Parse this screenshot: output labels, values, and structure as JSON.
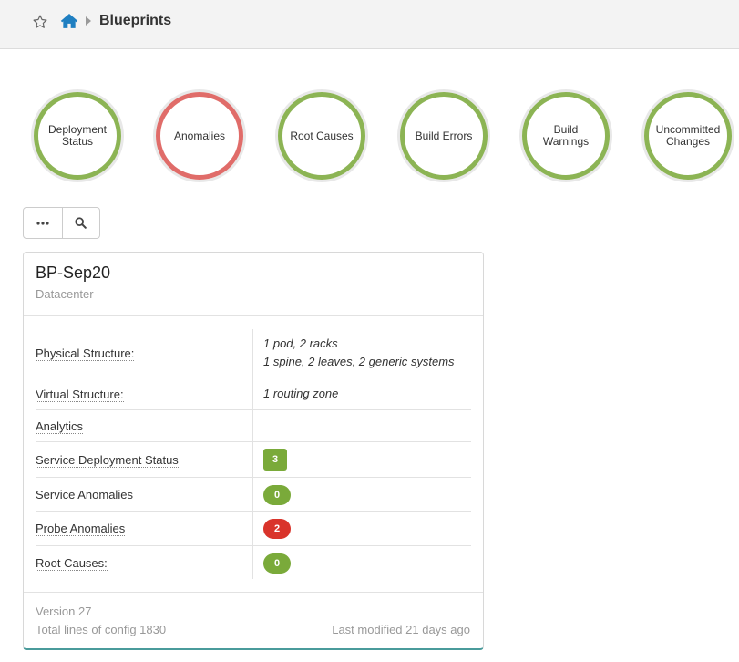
{
  "header": {
    "title": "Blueprints",
    "icons": [
      "star-icon",
      "home-icon",
      "chevron-right-icon"
    ]
  },
  "status_circles": [
    {
      "label": "Deployment Status",
      "status": "ok"
    },
    {
      "label": "Anomalies",
      "status": "error"
    },
    {
      "label": "Root Causes",
      "status": "ok"
    },
    {
      "label": "Build Errors",
      "status": "ok"
    },
    {
      "label": "Build Warnings",
      "status": "ok"
    },
    {
      "label": "Uncommitted Changes",
      "status": "ok"
    }
  ],
  "toolbar": {
    "icons": [
      "more-options-icon",
      "search-icon"
    ]
  },
  "blueprint": {
    "name": "BP-Sep20",
    "type": "Datacenter",
    "rows": {
      "physical_structure": {
        "label": "Physical Structure:",
        "value_line1": "1 pod, 2 racks",
        "value_line2": "1 spine, 2 leaves, 2 generic systems"
      },
      "virtual_structure": {
        "label": "Virtual Structure:",
        "value": "1 routing zone"
      },
      "analytics": {
        "label": "Analytics"
      },
      "service_deployment_status": {
        "label": "Service Deployment Status",
        "count": "3"
      },
      "service_anomalies": {
        "label": "Service Anomalies",
        "count": "0"
      },
      "probe_anomalies": {
        "label": "Probe Anomalies",
        "count": "2"
      },
      "root_causes": {
        "label": "Root Causes:",
        "count": "0"
      }
    },
    "version": "Version 27",
    "config_lines": "Total lines of config 1830",
    "last_modified": "Last modified 21 days ago"
  },
  "colors": {
    "ok": "#8cb454",
    "error": "#e06c69",
    "badge_green": "#7aaa3a",
    "badge_red": "#d9342b",
    "home_icon": "#1f7fc1"
  }
}
